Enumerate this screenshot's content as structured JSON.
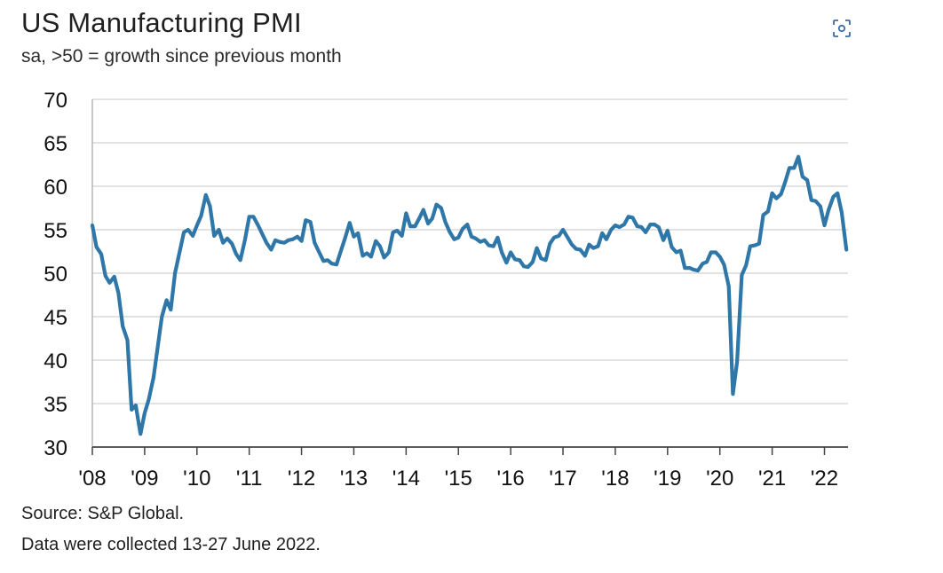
{
  "chart_data": {
    "type": "line",
    "title": "US Manufacturing PMI",
    "subtitle": "sa, >50 = growth since previous month",
    "xlabel": "",
    "ylabel": "",
    "ylim": [
      30,
      70
    ],
    "yticks": [
      "30",
      "35",
      "40",
      "45",
      "50",
      "55",
      "60",
      "65",
      "70"
    ],
    "xtick_labels": [
      "'08",
      "'09",
      "'10",
      "'11",
      "'12",
      "'13",
      "'14",
      "'15",
      "'16",
      "'17",
      "'18",
      "'19",
      "'20",
      "'21",
      "'22"
    ],
    "xtick_values": [
      2008,
      2009,
      2010,
      2011,
      2012,
      2013,
      2014,
      2015,
      2016,
      2017,
      2018,
      2019,
      2020,
      2021,
      2022
    ],
    "xlim": [
      2008,
      2022.45
    ],
    "grid": "horizontal",
    "line_color": "#2e77a8",
    "grid_color": "#d9d9d9",
    "series": [
      {
        "x": [
          2008.0,
          2008.08,
          2008.17,
          2008.25,
          2008.33,
          2008.42,
          2008.5,
          2008.58,
          2008.67,
          2008.75,
          2008.83,
          2008.92,
          2009.0,
          2009.08,
          2009.17,
          2009.25,
          2009.33,
          2009.42,
          2009.5,
          2009.58,
          2009.67,
          2009.75,
          2009.83,
          2009.92,
          2010.0,
          2010.08,
          2010.17,
          2010.25,
          2010.33,
          2010.42,
          2010.5,
          2010.58,
          2010.67,
          2010.75,
          2010.83,
          2010.92,
          2011.0,
          2011.08,
          2011.17,
          2011.25,
          2011.33,
          2011.42,
          2011.5,
          2011.58,
          2011.67,
          2011.75,
          2011.83,
          2011.92,
          2012.0,
          2012.08,
          2012.17,
          2012.25,
          2012.33,
          2012.42,
          2012.5,
          2012.58,
          2012.67,
          2012.75,
          2012.83,
          2012.92,
          2013.0,
          2013.08,
          2013.17,
          2013.25,
          2013.33,
          2013.42,
          2013.5,
          2013.58,
          2013.67,
          2013.75,
          2013.83,
          2013.92,
          2014.0,
          2014.08,
          2014.17,
          2014.25,
          2014.33,
          2014.42,
          2014.5,
          2014.58,
          2014.67,
          2014.75,
          2014.83,
          2014.92,
          2015.0,
          2015.08,
          2015.17,
          2015.25,
          2015.33,
          2015.42,
          2015.5,
          2015.58,
          2015.67,
          2015.75,
          2015.83,
          2015.92,
          2016.0,
          2016.08,
          2016.17,
          2016.25,
          2016.33,
          2016.42,
          2016.5,
          2016.58,
          2016.67,
          2016.75,
          2016.83,
          2016.92,
          2017.0,
          2017.08,
          2017.17,
          2017.25,
          2017.33,
          2017.42,
          2017.5,
          2017.58,
          2017.67,
          2017.75,
          2017.83,
          2017.92,
          2018.0,
          2018.08,
          2018.17,
          2018.25,
          2018.33,
          2018.42,
          2018.5,
          2018.58,
          2018.67,
          2018.75,
          2018.83,
          2018.92,
          2019.0,
          2019.08,
          2019.17,
          2019.25,
          2019.33,
          2019.42,
          2019.5,
          2019.58,
          2019.67,
          2019.75,
          2019.83,
          2019.92,
          2020.0,
          2020.08,
          2020.17,
          2020.25,
          2020.33,
          2020.42,
          2020.5,
          2020.58,
          2020.67,
          2020.75,
          2020.83,
          2020.92,
          2021.0,
          2021.08,
          2021.17,
          2021.25,
          2021.33,
          2021.42,
          2021.5,
          2021.58,
          2021.67,
          2021.75,
          2021.83,
          2021.92,
          2022.0,
          2022.08,
          2022.17,
          2022.25,
          2022.33,
          2022.42
        ],
        "y": [
          55.5,
          53.0,
          52.2,
          49.7,
          48.9,
          49.6,
          47.7,
          43.9,
          42.3,
          34.3,
          34.8,
          31.5,
          33.9,
          35.5,
          38.0,
          41.5,
          45.0,
          46.9,
          45.8,
          50.0,
          52.5,
          54.7,
          55.0,
          54.3,
          55.5,
          56.6,
          59.0,
          57.7,
          54.3,
          55.0,
          53.5,
          54.0,
          53.4,
          52.2,
          51.5,
          53.9,
          56.5,
          56.5,
          55.5,
          54.5,
          53.5,
          52.7,
          53.8,
          53.6,
          53.5,
          53.8,
          53.9,
          54.2,
          53.7,
          56.1,
          55.9,
          53.5,
          52.5,
          51.4,
          51.5,
          51.1,
          51.0,
          52.5,
          54.0,
          55.8,
          54.2,
          54.6,
          52.0,
          52.3,
          51.9,
          53.7,
          53.1,
          51.8,
          52.4,
          54.7,
          54.9,
          54.3,
          56.9,
          55.4,
          55.4,
          56.3,
          57.3,
          55.7,
          56.3,
          57.9,
          57.5,
          55.9,
          54.8,
          53.9,
          54.1,
          55.1,
          55.6,
          54.2,
          54.0,
          53.6,
          53.8,
          53.2,
          53.1,
          54.1,
          52.4,
          51.2,
          52.4,
          51.6,
          51.5,
          50.8,
          50.7,
          51.3,
          52.9,
          51.7,
          51.5,
          53.4,
          54.1,
          54.3,
          55.0,
          54.2,
          53.3,
          52.8,
          52.7,
          52.0,
          53.3,
          52.9,
          53.1,
          54.6,
          53.9,
          55.0,
          55.5,
          55.3,
          55.6,
          56.5,
          56.4,
          55.4,
          55.3,
          54.7,
          55.6,
          55.6,
          55.3,
          53.8,
          54.9,
          53.0,
          52.4,
          52.6,
          50.6,
          50.6,
          50.4,
          50.3,
          51.1,
          51.3,
          52.4,
          52.4,
          51.9,
          51.0,
          48.5,
          36.1,
          39.8,
          49.8,
          50.9,
          53.1,
          53.2,
          53.4,
          56.7,
          57.1,
          59.2,
          58.6,
          59.1,
          60.5,
          62.1,
          62.1,
          63.4,
          61.1,
          60.7,
          58.4,
          58.3,
          57.7,
          55.5,
          57.3,
          58.8,
          59.2,
          57.0,
          52.7
        ]
      }
    ]
  },
  "source_text": "Source: S&P Global.",
  "note_text": "Data were collected 13-27 June 2022."
}
